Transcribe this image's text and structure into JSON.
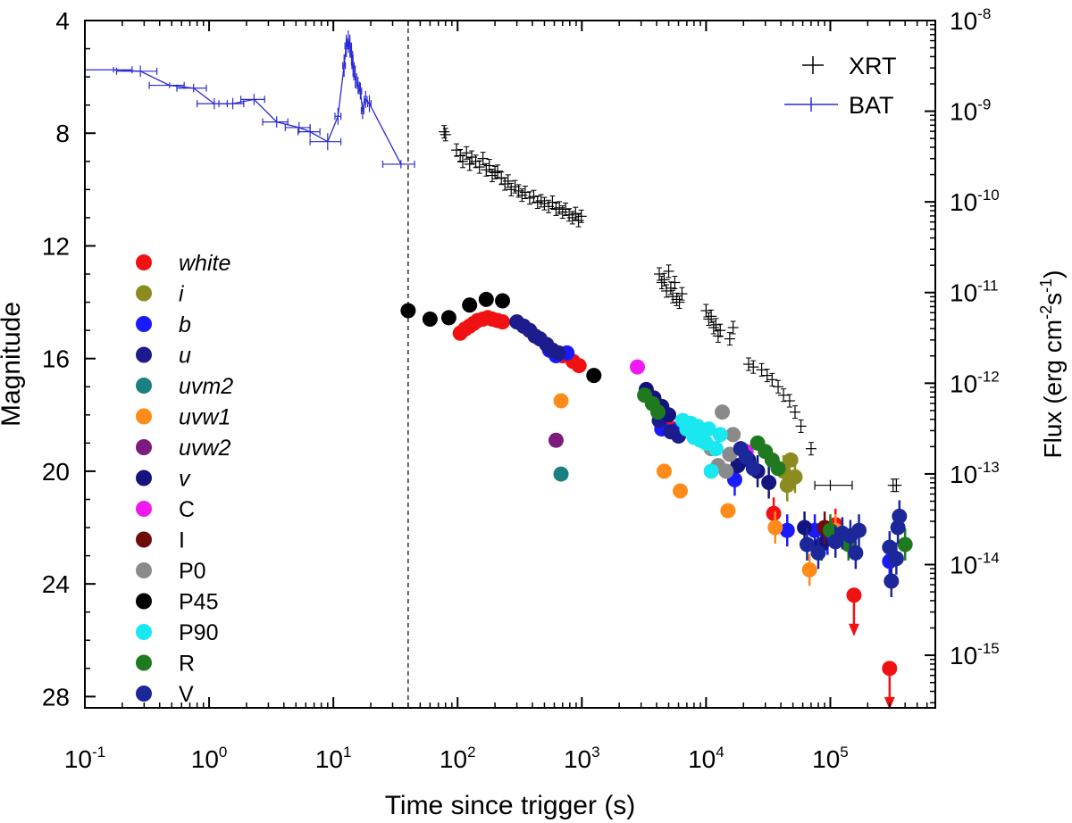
{
  "chart_data": {
    "type": "scatter",
    "xlabel": "Time since trigger (s)",
    "ylabel": "Magnitude",
    "y2label": "Flux (erg cm",
    "y2label_sup1": "-2",
    "y2label_mid": "s",
    "y2label_sup2": "-1",
    "y2label_end": ")",
    "xscale": "log",
    "xlim": [
      0.1,
      700000
    ],
    "ylim": [
      28.4,
      4
    ],
    "y2lim_log10": [
      -15.58,
      -8
    ],
    "x_ticks": [
      {
        "base": "10",
        "exp": "-1",
        "value": 0.1
      },
      {
        "base": "10",
        "exp": "0",
        "value": 1
      },
      {
        "base": "10",
        "exp": "1",
        "value": 10
      },
      {
        "base": "10",
        "exp": "2",
        "value": 100
      },
      {
        "base": "10",
        "exp": "3",
        "value": 1000
      },
      {
        "base": "10",
        "exp": "4",
        "value": 10000
      },
      {
        "base": "10",
        "exp": "5",
        "value": 100000
      }
    ],
    "y_ticks": [
      "4",
      "8",
      "12",
      "16",
      "20",
      "24",
      "28"
    ],
    "y2_ticks": [
      {
        "base": "10",
        "exp": "-8",
        "log": -8
      },
      {
        "base": "10",
        "exp": "-9",
        "log": -9
      },
      {
        "base": "10",
        "exp": "-10",
        "log": -10
      },
      {
        "base": "10",
        "exp": "-11",
        "log": -11
      },
      {
        "base": "10",
        "exp": "-12",
        "log": -12
      },
      {
        "base": "10",
        "exp": "-13",
        "log": -13
      },
      {
        "base": "10",
        "exp": "-14",
        "log": -14
      },
      {
        "base": "10",
        "exp": "-15",
        "log": -15
      }
    ],
    "vline_x": 40,
    "top_legend": [
      {
        "label": "XRT",
        "color": "#000000"
      },
      {
        "label": "BAT",
        "color": "#2a2ad6"
      }
    ],
    "bat": [
      [
        0.17,
        5.75,
        0.07,
        0.1
      ],
      [
        0.28,
        5.8,
        0.1,
        0.2
      ],
      [
        0.48,
        6.3,
        0.15,
        0.1
      ],
      [
        0.75,
        6.4,
        0.2,
        0.15
      ],
      [
        1.1,
        6.95,
        0.3,
        0.2
      ],
      [
        1.55,
        6.95,
        0.35,
        0.2
      ],
      [
        2.3,
        6.8,
        0.5,
        0.2
      ],
      [
        3.5,
        7.6,
        0.8,
        0.2
      ],
      [
        5.3,
        7.8,
        1.2,
        0.2
      ],
      [
        6.5,
        7.95,
        1.3,
        0.2
      ],
      [
        9.0,
        8.3,
        2.5,
        0.3
      ],
      [
        10.9,
        7.4,
        0.6,
        0.3
      ],
      [
        12.2,
        5.6,
        0.3,
        0.4
      ],
      [
        12.7,
        4.9,
        0.3,
        0.4
      ],
      [
        13.2,
        4.75,
        0.3,
        0.4
      ],
      [
        13.6,
        4.9,
        0.3,
        0.4
      ],
      [
        14.0,
        5.2,
        0.3,
        0.4
      ],
      [
        14.4,
        5.6,
        0.3,
        0.4
      ],
      [
        15.0,
        6.0,
        0.4,
        0.4
      ],
      [
        15.8,
        6.3,
        0.4,
        0.3
      ],
      [
        16.5,
        6.5,
        0.4,
        0.3
      ],
      [
        17.2,
        7.2,
        0.4,
        0.3
      ],
      [
        18.2,
        6.8,
        0.5,
        0.3
      ],
      [
        19.5,
        6.95,
        0.6,
        0.3
      ],
      [
        35,
        9.1,
        10,
        0.15
      ]
    ],
    "xrt": [
      [
        78,
        7.95
      ],
      [
        80,
        8.05
      ],
      [
        98,
        8.6
      ],
      [
        105,
        8.8
      ],
      [
        110,
        9.0
      ],
      [
        118,
        8.7
      ],
      [
        125,
        9.1
      ],
      [
        130,
        8.85
      ],
      [
        140,
        9.0
      ],
      [
        150,
        9.2
      ],
      [
        160,
        8.9
      ],
      [
        170,
        9.3
      ],
      [
        180,
        9.15
      ],
      [
        190,
        9.5
      ],
      [
        200,
        9.4
      ],
      [
        210,
        9.35
      ],
      [
        225,
        9.6
      ],
      [
        240,
        9.8
      ],
      [
        255,
        9.7
      ],
      [
        270,
        10.0
      ],
      [
        290,
        9.9
      ],
      [
        310,
        10.05
      ],
      [
        330,
        10.2
      ],
      [
        350,
        10.1
      ],
      [
        380,
        10.3
      ],
      [
        410,
        10.25
      ],
      [
        440,
        10.45
      ],
      [
        470,
        10.4
      ],
      [
        500,
        10.5
      ],
      [
        540,
        10.6
      ],
      [
        580,
        10.45
      ],
      [
        620,
        10.7
      ],
      [
        660,
        10.65
      ],
      [
        700,
        10.8
      ],
      [
        740,
        10.7
      ],
      [
        790,
        10.9
      ],
      [
        840,
        11.0
      ],
      [
        890,
        10.85
      ],
      [
        940,
        11.1
      ],
      [
        990,
        10.95
      ],
      [
        4200,
        13.0
      ],
      [
        4400,
        13.3
      ],
      [
        4600,
        13.2
      ],
      [
        4800,
        13.6
      ],
      [
        5000,
        12.9
      ],
      [
        5200,
        13.5
      ],
      [
        5400,
        13.8
      ],
      [
        5600,
        13.3
      ],
      [
        5800,
        13.9
      ],
      [
        6100,
        14.0
      ],
      [
        6400,
        13.7
      ],
      [
        10000,
        14.3
      ],
      [
        10500,
        14.6
      ],
      [
        11000,
        14.5
      ],
      [
        11500,
        14.9
      ],
      [
        12000,
        14.8
      ],
      [
        12500,
        15.2
      ],
      [
        13000,
        15.0
      ],
      [
        15500,
        15.3
      ],
      [
        16500,
        14.9
      ],
      [
        22000,
        16.2
      ],
      [
        24000,
        16.3
      ],
      [
        28000,
        16.4
      ],
      [
        31000,
        16.6
      ],
      [
        34000,
        16.75
      ],
      [
        38000,
        17.0
      ],
      [
        42000,
        17.3
      ],
      [
        47000,
        17.5
      ],
      [
        52000,
        17.9
      ],
      [
        58000,
        18.4
      ],
      [
        70000,
        19.2
      ],
      [
        320000,
        20.5
      ],
      [
        340000,
        20.5
      ]
    ],
    "xrt_late": [
      [
        100000,
        20.5,
        25000
      ]
    ],
    "series": [
      {
        "name": "white",
        "color": "#f01212",
        "italic": true,
        "points": [
          [
            105,
            15.1
          ],
          [
            115,
            14.95
          ],
          [
            125,
            14.85
          ],
          [
            135,
            14.75
          ],
          [
            145,
            14.65
          ],
          [
            160,
            14.6
          ],
          [
            175,
            14.55
          ],
          [
            190,
            14.6
          ],
          [
            210,
            14.65
          ],
          [
            230,
            14.7
          ],
          [
            700,
            15.9
          ],
          [
            850,
            16.1
          ],
          [
            950,
            16.25
          ],
          [
            4500,
            18.4
          ],
          [
            5500,
            18.5
          ],
          [
            35000,
            21.5
          ],
          [
            110000,
            21.9
          ],
          [
            155000,
            24.4
          ],
          [
            300000,
            27.0
          ]
        ]
      },
      {
        "name": "i",
        "color": "#8b8b1f",
        "italic": true,
        "points": [
          [
            42000,
            20.0
          ],
          [
            45000,
            20.5
          ],
          [
            48000,
            19.6
          ],
          [
            52000,
            20.2
          ]
        ]
      },
      {
        "name": "b",
        "color": "#1a1aff",
        "italic": true,
        "points": [
          [
            550,
            15.7
          ],
          [
            620,
            15.9
          ],
          [
            760,
            15.8
          ],
          [
            4400,
            18.5
          ],
          [
            5800,
            18.55
          ],
          [
            17000,
            20.3
          ],
          [
            45000,
            22.1
          ],
          [
            75000,
            22.1
          ],
          [
            95000,
            22.4
          ],
          [
            300000,
            23.2
          ]
        ]
      },
      {
        "name": "u",
        "color": "#1c1c8f",
        "italic": true,
        "points": [
          [
            300,
            14.7
          ],
          [
            340,
            14.85
          ],
          [
            380,
            15.0
          ],
          [
            420,
            15.2
          ],
          [
            460,
            15.3
          ],
          [
            520,
            15.5
          ],
          [
            580,
            15.7
          ],
          [
            650,
            15.8
          ],
          [
            4200,
            18.2
          ],
          [
            5200,
            18.6
          ],
          [
            6000,
            18.75
          ]
        ]
      },
      {
        "name": "uvm2",
        "color": "#1b8080",
        "italic": true,
        "points": [
          [
            680,
            20.1
          ]
        ]
      },
      {
        "name": "uvw1",
        "color": "#ff8c1a",
        "italic": true,
        "points": [
          [
            680,
            17.5
          ],
          [
            4600,
            20.0
          ],
          [
            6200,
            20.7
          ],
          [
            15000,
            21.4
          ],
          [
            36000,
            22.0
          ],
          [
            68000,
            23.5
          ],
          [
            110000,
            22.1
          ]
        ]
      },
      {
        "name": "uvw2",
        "color": "#7d1a7d",
        "italic": true,
        "points": [
          [
            620,
            18.9
          ]
        ]
      },
      {
        "name": "v",
        "color": "#141480",
        "italic": true,
        "points": [
          [
            3300,
            17.1
          ],
          [
            3800,
            17.4
          ],
          [
            4400,
            17.7
          ],
          [
            5000,
            18.0
          ],
          [
            18000,
            19.8
          ],
          [
            22000,
            19.6
          ],
          [
            26000,
            20.0
          ],
          [
            32000,
            20.4
          ],
          [
            62000,
            22.0
          ],
          [
            85000,
            22.6
          ]
        ]
      },
      {
        "name": "C",
        "color": "#f01af0",
        "italic": false,
        "points": [
          [
            2800,
            16.3
          ],
          [
            21000,
            19.3
          ]
        ]
      },
      {
        "name": "I",
        "color": "#6e0c0c",
        "italic": false,
        "points": [
          [
            90000,
            22.0
          ]
        ]
      },
      {
        "name": "P0",
        "color": "#8a8a8a",
        "italic": false,
        "points": [
          [
            11000,
            19.2
          ],
          [
            12500,
            19.8
          ],
          [
            13500,
            17.9
          ],
          [
            14500,
            20.0
          ],
          [
            15500,
            19.4
          ],
          [
            16500,
            18.7
          ]
        ]
      },
      {
        "name": "P45",
        "color": "#000000",
        "italic": false,
        "points": [
          [
            40,
            14.3
          ],
          [
            60,
            14.6
          ],
          [
            85,
            14.55
          ],
          [
            125,
            14.1
          ],
          [
            170,
            13.9
          ],
          [
            230,
            13.95
          ],
          [
            1250,
            16.6
          ]
        ]
      },
      {
        "name": "P90",
        "color": "#1ae8f0",
        "italic": false,
        "points": [
          [
            6500,
            18.2
          ],
          [
            7000,
            18.5
          ],
          [
            7500,
            18.3
          ],
          [
            8000,
            18.8
          ],
          [
            8500,
            18.4
          ],
          [
            9000,
            18.9
          ],
          [
            9500,
            18.6
          ],
          [
            10000,
            19.0
          ],
          [
            10500,
            18.5
          ],
          [
            11000,
            20.0
          ],
          [
            12000,
            19.2
          ],
          [
            13000,
            18.7
          ]
        ]
      },
      {
        "name": "R",
        "color": "#1f7a1f",
        "italic": false,
        "points": [
          [
            3200,
            17.3
          ],
          [
            3700,
            17.6
          ],
          [
            4100,
            17.9
          ],
          [
            26000,
            19.0
          ],
          [
            30000,
            19.3
          ],
          [
            34000,
            19.6
          ],
          [
            38000,
            19.9
          ],
          [
            100000,
            22.1
          ],
          [
            140000,
            22.6
          ],
          [
            400000,
            22.6
          ]
        ]
      },
      {
        "name": "V",
        "color": "#1c2799",
        "italic": false,
        "points": [
          [
            19000,
            19.2
          ],
          [
            21000,
            19.5
          ],
          [
            24000,
            19.9
          ],
          [
            65000,
            22.6
          ],
          [
            80000,
            22.9
          ],
          [
            110000,
            22.5
          ],
          [
            125000,
            22.2
          ],
          [
            145000,
            22.3
          ],
          [
            160000,
            22.9
          ],
          [
            170000,
            22.1
          ],
          [
            300000,
            22.7
          ],
          [
            310000,
            23.9
          ],
          [
            340000,
            23.1
          ],
          [
            350000,
            22.0
          ],
          [
            360000,
            21.6
          ]
        ]
      }
    ]
  }
}
